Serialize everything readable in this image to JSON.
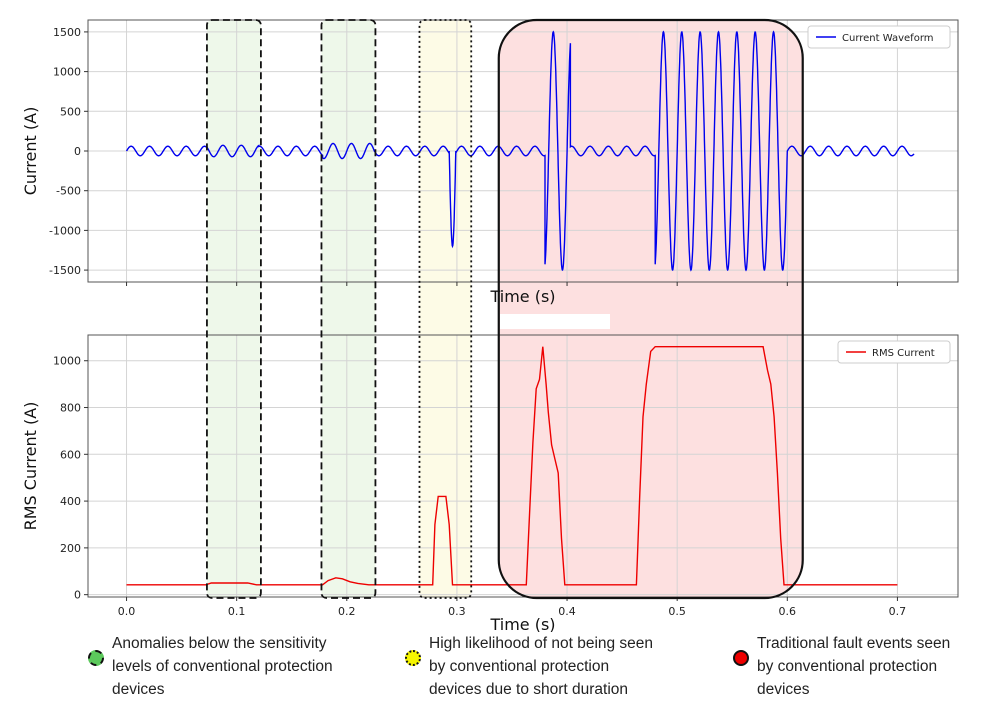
{
  "chart_data": [
    {
      "type": "line",
      "xlabel": "Time (s)",
      "ylabel": "Current (A)",
      "xlim": [
        -0.035,
        0.755
      ],
      "ylim": [
        -1650,
        1650
      ],
      "yticks": [
        -1500,
        -1000,
        -500,
        0,
        500,
        1000,
        1500
      ],
      "grid": true,
      "legend_position": "upper-right",
      "series": [
        {
          "name": "Current Waveform",
          "color": "#0000ee",
          "segments": [
            {
              "t": [
                0.0,
                0.074
              ],
              "shape": "sine",
              "amplitude": 60,
              "frequency_hz": 60
            },
            {
              "t": [
                0.074,
                0.12
              ],
              "shape": "sine",
              "amplitude": 72,
              "frequency_hz": 60
            },
            {
              "t": [
                0.12,
                0.178
              ],
              "shape": "sine",
              "amplitude": 60,
              "frequency_hz": 60
            },
            {
              "t": [
                0.178,
                0.225
              ],
              "shape": "sine",
              "amplitude": 95,
              "frequency_hz": 60
            },
            {
              "t": [
                0.225,
                0.293
              ],
              "shape": "sine",
              "amplitude": 60,
              "frequency_hz": 60
            },
            {
              "t": [
                0.293,
                0.299
              ],
              "shape": "spike",
              "peak": -1200
            },
            {
              "t": [
                0.299,
                0.38
              ],
              "shape": "sine",
              "amplitude": 60,
              "frequency_hz": 60
            },
            {
              "t": [
                0.38,
                0.403
              ],
              "shape": "sine",
              "amplitude": 1500,
              "frequency_hz": 60
            },
            {
              "t": [
                0.403,
                0.48
              ],
              "shape": "sine",
              "amplitude": 60,
              "frequency_hz": 60
            },
            {
              "t": [
                0.48,
                0.6
              ],
              "shape": "sine",
              "amplitude": 1500,
              "frequency_hz": 60
            },
            {
              "t": [
                0.6,
                0.715
              ],
              "shape": "sine",
              "amplitude": 60,
              "frequency_hz": 60
            }
          ]
        }
      ]
    },
    {
      "type": "line",
      "xlabel": "Time (s)",
      "ylabel": "RMS Current (A)",
      "xlim": [
        -0.035,
        0.755
      ],
      "ylim": [
        -10,
        1110
      ],
      "xticks": [
        0.0,
        0.1,
        0.2,
        0.3,
        0.4,
        0.5,
        0.6,
        0.7
      ],
      "xtick_labels": [
        "0.0",
        "0.1",
        "0.2",
        "0.3",
        "0.4",
        "0.5",
        "0.6",
        "0.7"
      ],
      "yticks": [
        0,
        200,
        400,
        600,
        800,
        1000
      ],
      "grid": true,
      "legend_position": "upper-right",
      "series": [
        {
          "name": "RMS Current",
          "color": "#ee0000",
          "x": [
            0.0,
            0.072,
            0.077,
            0.11,
            0.118,
            0.178,
            0.183,
            0.19,
            0.196,
            0.203,
            0.21,
            0.22,
            0.278,
            0.28,
            0.283,
            0.29,
            0.293,
            0.296,
            0.363,
            0.366,
            0.369,
            0.372,
            0.375,
            0.378,
            0.381,
            0.383,
            0.386,
            0.389,
            0.392,
            0.395,
            0.398,
            0.463,
            0.466,
            0.469,
            0.472,
            0.476,
            0.48,
            0.578,
            0.582,
            0.585,
            0.588,
            0.591,
            0.594,
            0.597,
            0.7
          ],
          "y": [
            42,
            42,
            50,
            50,
            42,
            42,
            60,
            72,
            68,
            55,
            48,
            42,
            42,
            300,
            420,
            420,
            300,
            42,
            42,
            350,
            650,
            880,
            920,
            1060,
            900,
            780,
            640,
            580,
            520,
            240,
            42,
            42,
            420,
            760,
            900,
            1040,
            1060,
            1060,
            960,
            900,
            760,
            520,
            240,
            42,
            42
          ]
        }
      ]
    }
  ],
  "highlights": [
    {
      "name": "zone-anomaly-1",
      "x_range": [
        0.073,
        0.122
      ],
      "category": "green",
      "border": "dashed"
    },
    {
      "name": "zone-anomaly-2",
      "x_range": [
        0.177,
        0.226
      ],
      "category": "green",
      "border": "dashed"
    },
    {
      "name": "zone-short-duration",
      "x_range": [
        0.266,
        0.313
      ],
      "category": "yellow",
      "border": "dotted"
    },
    {
      "name": "zone-fault-events",
      "x_range": [
        0.338,
        0.614
      ],
      "category": "red",
      "border": "solid-rounded"
    }
  ],
  "legend": {
    "green": {
      "color": "#5cc95c",
      "border": "dashed",
      "text": "Anomalies below the sensitivity\nlevels of conventional protection\ndevices"
    },
    "yellow": {
      "color": "#f5f500",
      "border": "dotted",
      "text": "High likelihood of not being seen\nby conventional protection\ndevices due to short duration"
    },
    "red": {
      "color": "#ee0000",
      "border": "solid",
      "text": "Traditional fault events seen\nby conventional protection\ndevices"
    }
  },
  "colors": {
    "zone_green_fill": "#eef8ea",
    "zone_yellow_fill": "#fdfbe6",
    "zone_red_fill": "#fde0e0",
    "grid": "#d4d4d4",
    "axes": "#555555"
  }
}
